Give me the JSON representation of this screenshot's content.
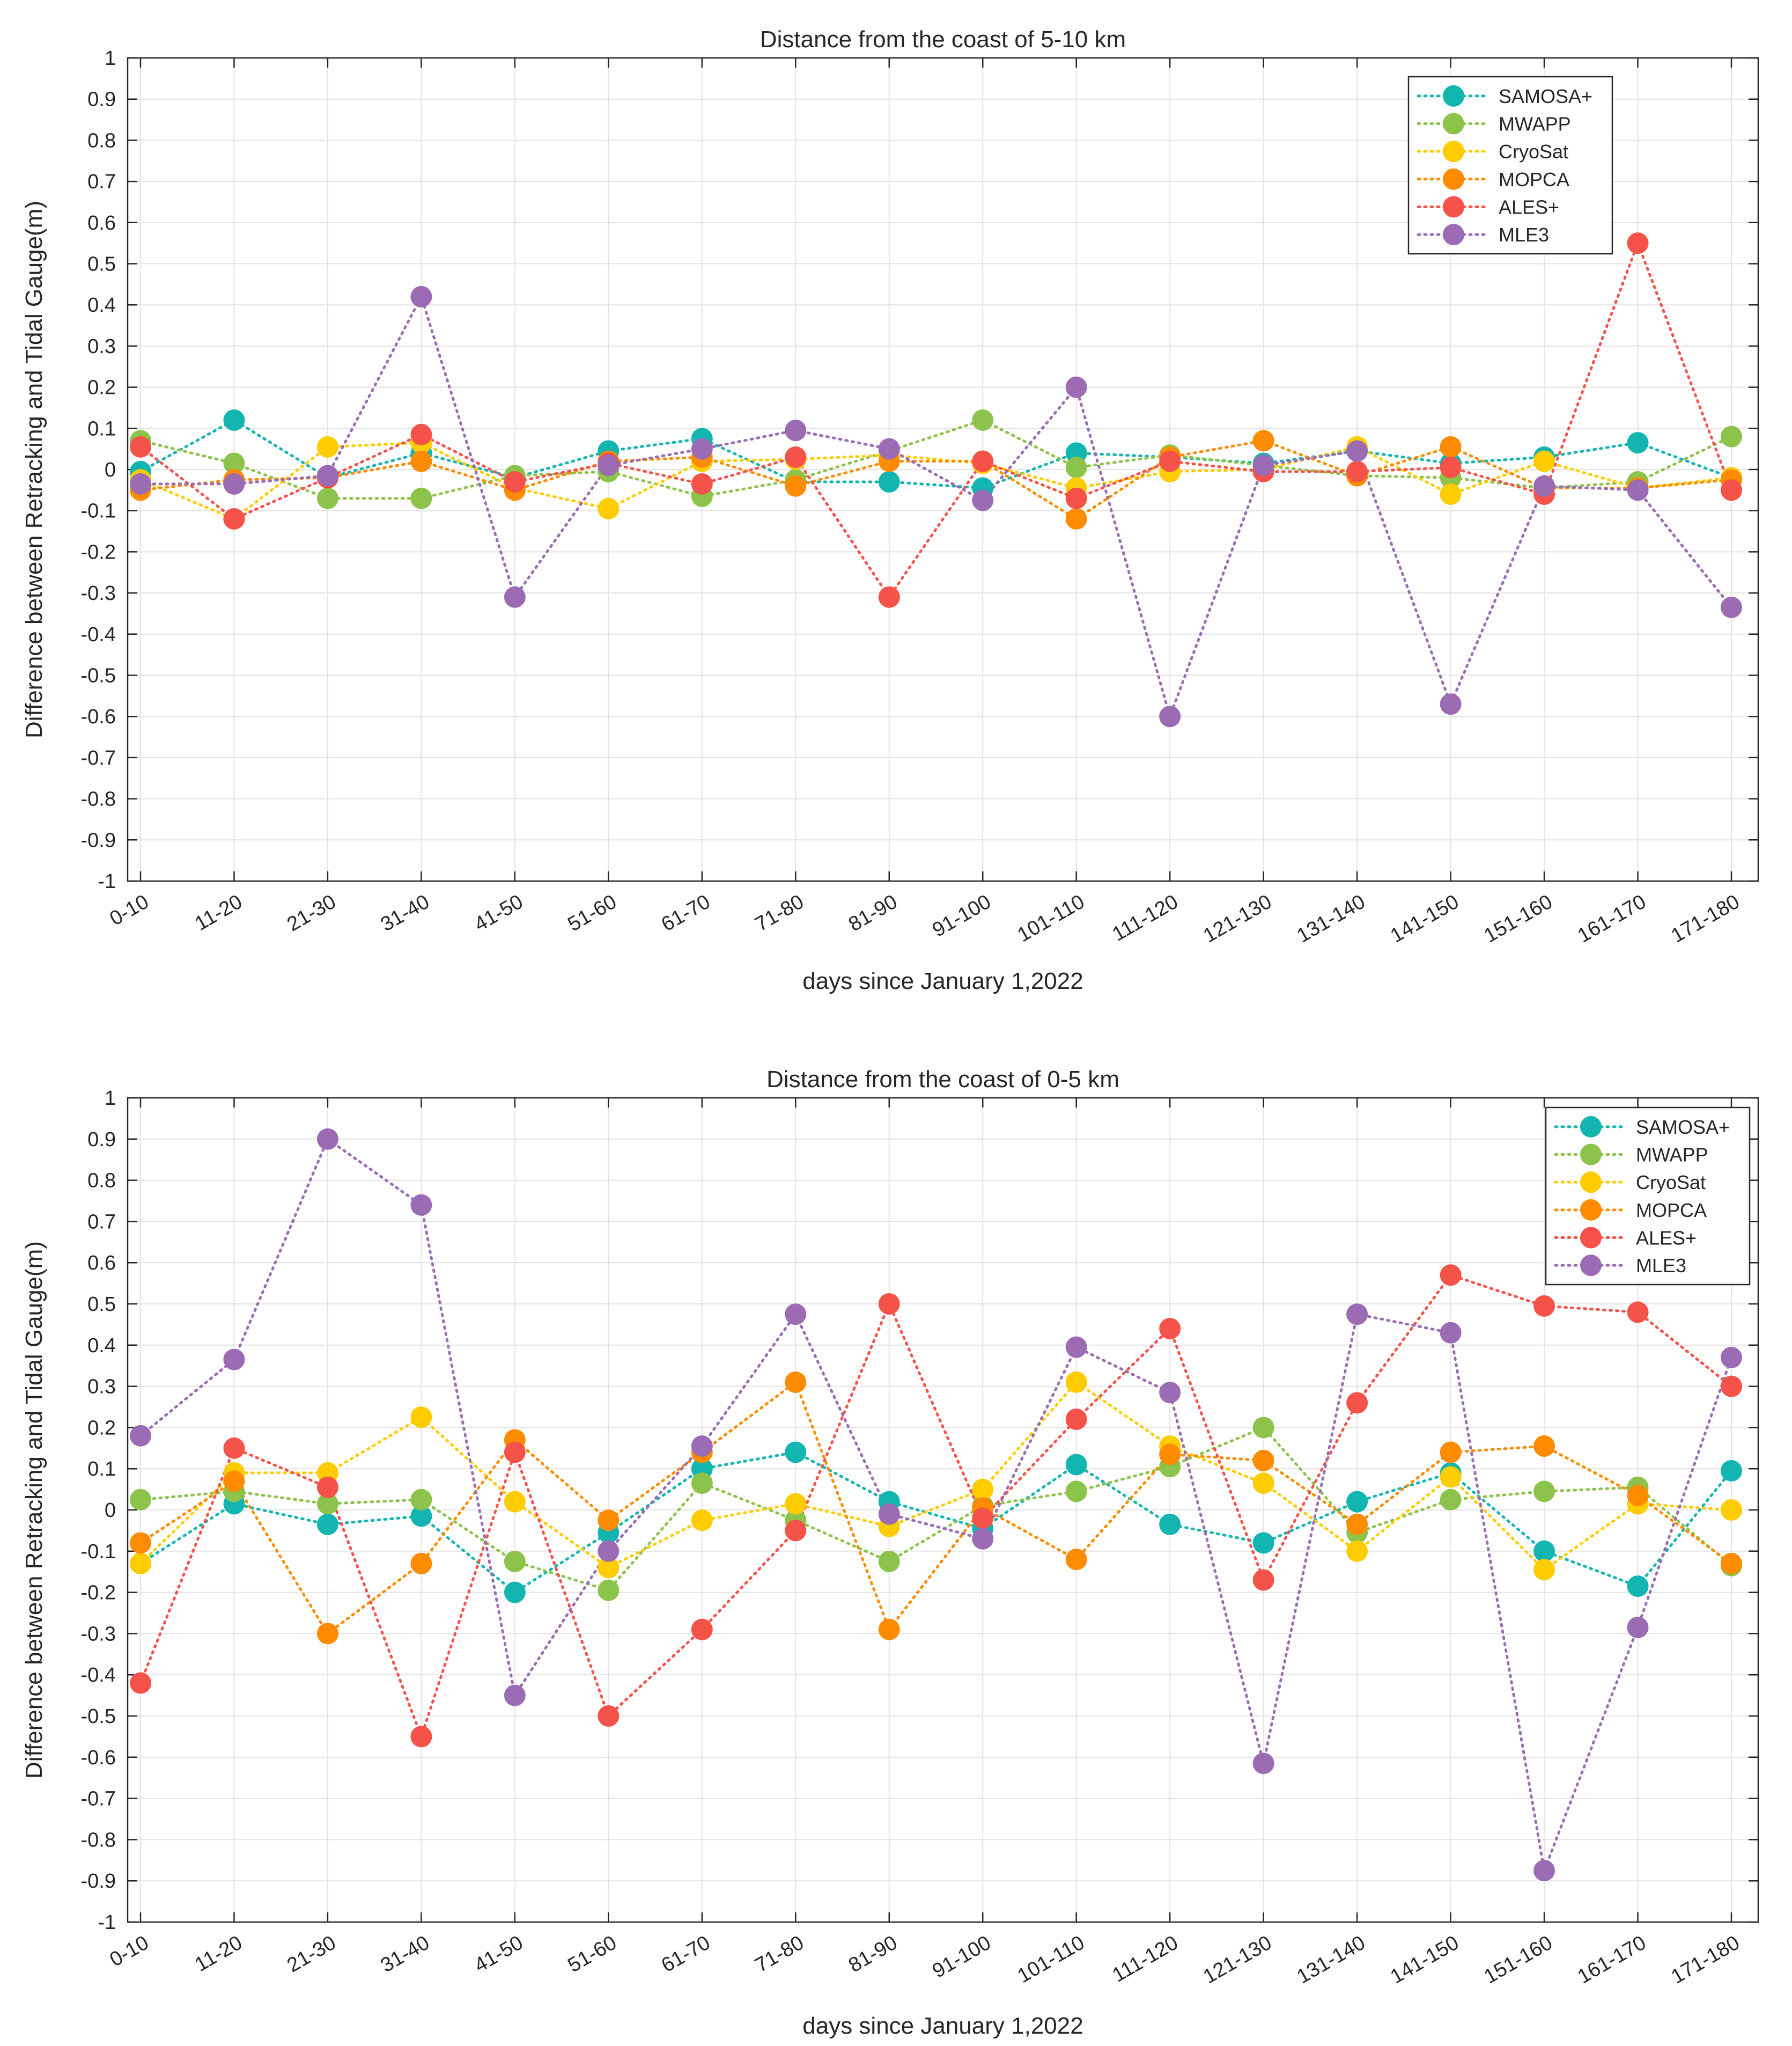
{
  "colors": {
    "SAMOSA+": "#13b5b1",
    "MWAPP": "#8cc34a",
    "CryoSat": "#ffcc00",
    "MOPCA": "#ff8c00",
    "ALES+": "#f55249",
    "MLE3": "#9b6bb3",
    "grid": "#e3e3e3",
    "axis": "#262626"
  },
  "chart_data": [
    {
      "type": "line",
      "title": "Distance from the coast of 5-10 km",
      "xlabel": "days  since January 1,2022",
      "ylabel": "Difference between Retracking and Tidal Gauge(m)",
      "ylim": [
        -1,
        1
      ],
      "yticks": [
        "-1",
        "-0.9",
        "-0.8",
        "-0.7",
        "-0.6",
        "-0.5",
        "-0.4",
        "-0.3",
        "-0.2",
        "-0.1",
        "0",
        "0.1",
        "0.2",
        "0.3",
        "0.4",
        "0.5",
        "0.6",
        "0.7",
        "0.8",
        "0.9",
        "1"
      ],
      "grid": true,
      "legend": "top-right",
      "categories": [
        "0-10",
        "11-20",
        "21-30",
        "31-40",
        "41-50",
        "51-60",
        "61-70",
        "71-80",
        "81-90",
        "91-100",
        "101-110",
        "111-120",
        "121-130",
        "131-140",
        "141-150",
        "151-160",
        "161-170",
        "171-180"
      ],
      "series": [
        {
          "name": "SAMOSA+",
          "values": [
            -0.005,
            0.12,
            -0.02,
            0.04,
            -0.02,
            0.045,
            0.075,
            -0.03,
            -0.03,
            -0.045,
            0.04,
            0.03,
            0.015,
            0.045,
            0.015,
            0.03,
            0.065,
            -0.02
          ]
        },
        {
          "name": "MWAPP",
          "values": [
            0.07,
            0.015,
            -0.07,
            -0.07,
            -0.015,
            -0.005,
            -0.065,
            -0.025,
            0.045,
            0.12,
            0.005,
            0.035,
            0.01,
            -0.015,
            -0.02,
            -0.045,
            -0.03,
            0.08
          ]
        },
        {
          "name": "CryoSat",
          "values": [
            -0.025,
            -0.12,
            0.055,
            0.065,
            -0.045,
            -0.095,
            0.02,
            0.025,
            0.035,
            0.015,
            -0.045,
            -0.005,
            0.0,
            0.055,
            -0.06,
            0.02,
            -0.045,
            -0.02
          ]
        },
        {
          "name": "MOPCA",
          "values": [
            -0.05,
            -0.025,
            -0.02,
            0.02,
            -0.05,
            0.02,
            0.03,
            -0.04,
            0.02,
            0.02,
            -0.12,
            0.03,
            0.07,
            -0.015,
            0.055,
            -0.045,
            -0.045,
            -0.025
          ]
        },
        {
          "name": "ALES+",
          "values": [
            0.055,
            -0.12,
            -0.02,
            0.085,
            -0.03,
            0.015,
            -0.035,
            0.03,
            -0.31,
            0.02,
            -0.07,
            0.02,
            -0.005,
            -0.005,
            0.005,
            -0.06,
            0.55,
            -0.05
          ]
        },
        {
          "name": "MLE3",
          "values": [
            -0.035,
            -0.035,
            -0.015,
            0.42,
            -0.31,
            0.01,
            0.05,
            0.095,
            0.05,
            -0.075,
            0.2,
            -0.6,
            0.01,
            0.045,
            -0.57,
            -0.04,
            -0.05,
            -0.335
          ]
        }
      ]
    },
    {
      "type": "line",
      "title": "Distance from the coast of 0-5 km",
      "xlabel": "days  since January 1,2022",
      "ylabel": "Difference between Retracking and Tidal Gauge(m)",
      "ylim": [
        -1,
        1
      ],
      "yticks": [
        "-1",
        "-0.9",
        "-0.8",
        "-0.7",
        "-0.6",
        "-0.5",
        "-0.4",
        "-0.3",
        "-0.2",
        "-0.1",
        "0",
        "0.1",
        "0.2",
        "0.3",
        "0.4",
        "0.5",
        "0.6",
        "0.7",
        "0.8",
        "0.9",
        "1"
      ],
      "grid": true,
      "legend": "top-right",
      "categories": [
        "0-10",
        "11-20",
        "21-30",
        "31-40",
        "41-50",
        "51-60",
        "61-70",
        "71-80",
        "81-90",
        "91-100",
        "101-110",
        "111-120",
        "121-130",
        "131-140",
        "141-150",
        "151-160",
        "161-170",
        "171-180"
      ],
      "series": [
        {
          "name": "SAMOSA+",
          "values": [
            -0.13,
            0.015,
            -0.035,
            -0.015,
            -0.2,
            -0.055,
            0.1,
            0.14,
            0.02,
            -0.045,
            0.11,
            -0.035,
            -0.08,
            0.02,
            0.09,
            -0.1,
            -0.185,
            0.095
          ]
        },
        {
          "name": "MWAPP",
          "values": [
            0.025,
            0.045,
            0.015,
            0.025,
            -0.125,
            -0.195,
            0.065,
            -0.025,
            -0.125,
            0.01,
            0.045,
            0.105,
            0.2,
            -0.055,
            0.025,
            0.045,
            0.055,
            -0.135
          ]
        },
        {
          "name": "CryoSat",
          "values": [
            -0.13,
            0.09,
            0.09,
            0.225,
            0.02,
            -0.14,
            -0.025,
            0.015,
            -0.04,
            0.05,
            0.31,
            0.155,
            0.065,
            -0.1,
            0.08,
            -0.145,
            0.015,
            0.0
          ]
        },
        {
          "name": "MOPCA",
          "values": [
            -0.08,
            0.07,
            -0.3,
            -0.13,
            0.17,
            -0.025,
            0.14,
            0.31,
            -0.29,
            0.005,
            -0.12,
            0.135,
            0.12,
            -0.035,
            0.14,
            0.155,
            0.035,
            -0.13
          ]
        },
        {
          "name": "ALES+",
          "values": [
            -0.42,
            0.15,
            0.055,
            -0.55,
            0.14,
            -0.5,
            -0.29,
            -0.05,
            0.5,
            -0.02,
            0.22,
            0.44,
            -0.17,
            0.26,
            0.57,
            0.495,
            0.48,
            0.3
          ]
        },
        {
          "name": "MLE3",
          "values": [
            0.18,
            0.365,
            0.9,
            0.74,
            -0.45,
            -0.1,
            0.155,
            0.475,
            -0.01,
            -0.07,
            0.395,
            0.285,
            -0.615,
            0.475,
            0.43,
            -0.875,
            -0.285,
            0.37
          ]
        }
      ]
    }
  ]
}
